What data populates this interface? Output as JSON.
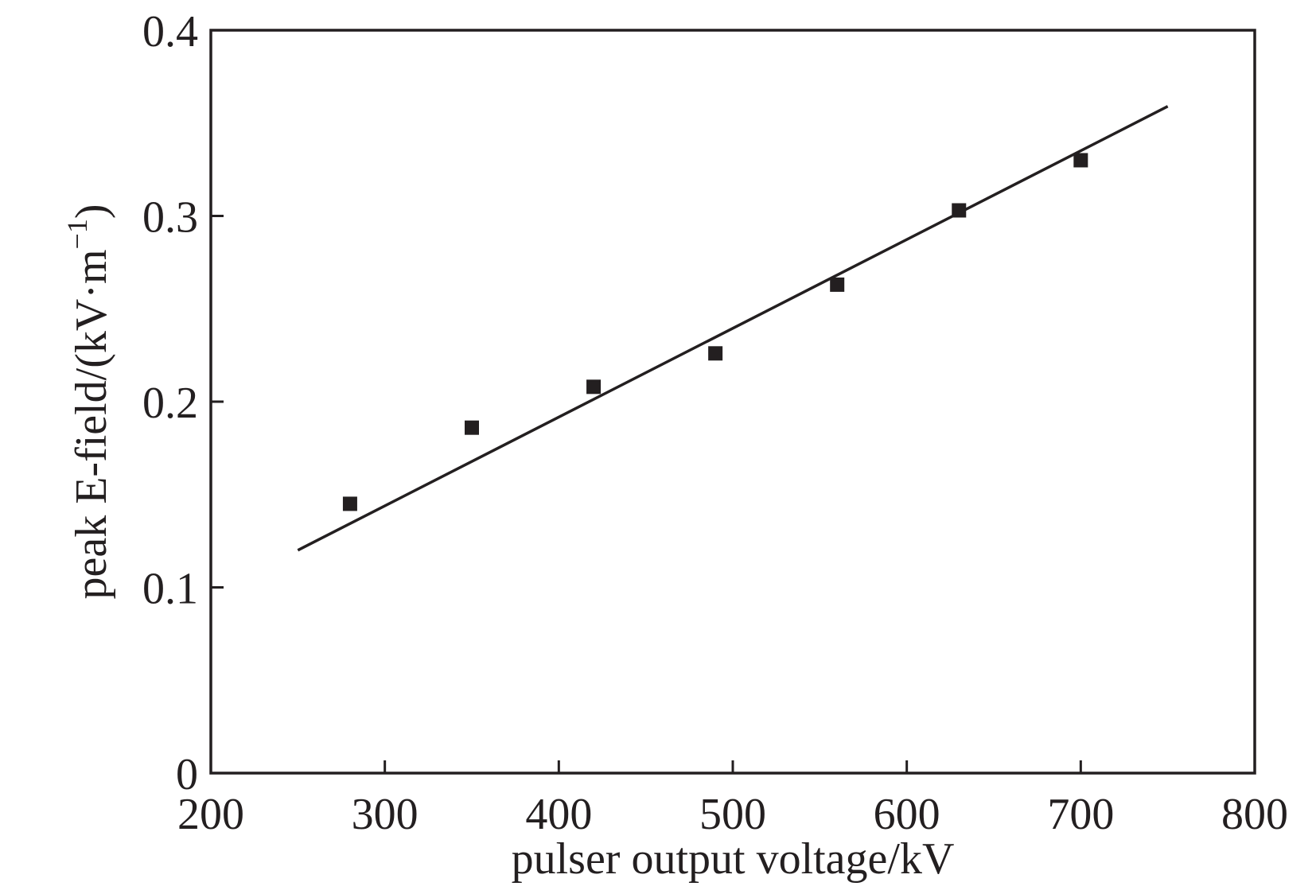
{
  "chart_data": {
    "type": "scatter",
    "xlabel": "pulser output voltage/kV",
    "ylabel_main": "peak E-field/(kV·m",
    "ylabel_sup": "−1",
    "ylabel_close": ")",
    "xlim": [
      200,
      800
    ],
    "ylim": [
      0,
      0.4
    ],
    "x_ticks": [
      200,
      300,
      400,
      500,
      600,
      700,
      800
    ],
    "x_tick_labels": [
      "200",
      "300",
      "400",
      "500",
      "600",
      "700",
      "800"
    ],
    "y_ticks": [
      0,
      0.1,
      0.2,
      0.3,
      0.4
    ],
    "y_tick_labels": [
      "0",
      "0.1",
      "0.2",
      "0.3",
      "0.4"
    ],
    "grid": false,
    "series": [
      {
        "marker": "square",
        "x": [
          280,
          350,
          420,
          490,
          560,
          630,
          700
        ],
        "y": [
          0.145,
          0.186,
          0.208,
          0.226,
          0.263,
          0.303,
          0.33
        ]
      }
    ],
    "fit_line": {
      "x": [
        250,
        750
      ],
      "y": [
        0.12,
        0.359
      ]
    },
    "color": "#231f20"
  }
}
